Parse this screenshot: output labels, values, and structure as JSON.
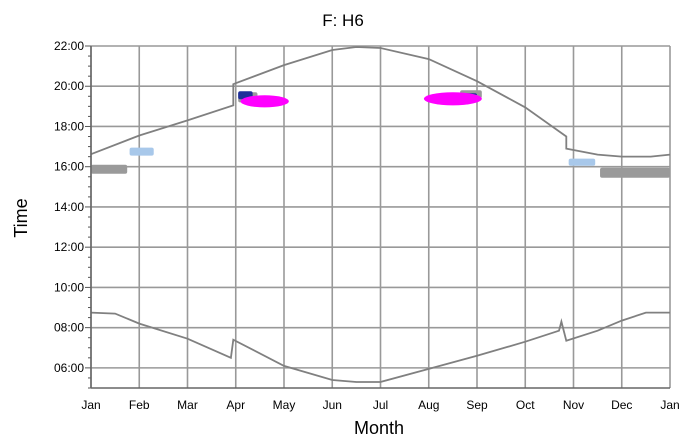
{
  "chart_data": {
    "type": "scatter",
    "title": "F: H6",
    "xlabel": "Month",
    "ylabel": "Time",
    "x_ticks": [
      "Jan",
      "Feb",
      "Mar",
      "Apr",
      "May",
      "Jun",
      "Jul",
      "Aug",
      "Sep",
      "Oct",
      "Nov",
      "Dec",
      "Jan"
    ],
    "y_ticks": [
      "06:00",
      "08:00",
      "10:00",
      "12:00",
      "14:00",
      "16:00",
      "18:00",
      "20:00",
      "22:00"
    ],
    "xlim": [
      0,
      12
    ],
    "ylim": [
      5,
      22
    ],
    "grid": true,
    "colors": {
      "grid": "#999999",
      "sun_line": "#808080",
      "gray": "#9a9a9a",
      "lightblue": "#a8c8ea",
      "darkblue": "#1f2f9a",
      "magenta": "#ff00ff"
    },
    "series": [
      {
        "name": "sunset",
        "kind": "line",
        "points": [
          [
            0,
            16.62
          ],
          [
            1,
            17.55
          ],
          [
            2,
            18.3
          ],
          [
            2.95,
            19.05
          ],
          [
            2.95,
            20.1
          ],
          [
            3,
            20.15
          ],
          [
            4,
            21.05
          ],
          [
            5,
            21.8
          ],
          [
            5.5,
            21.95
          ],
          [
            6,
            21.9
          ],
          [
            7,
            21.35
          ],
          [
            8,
            20.25
          ],
          [
            9,
            18.95
          ],
          [
            9.85,
            17.5
          ],
          [
            9.85,
            16.9
          ],
          [
            10.5,
            16.6
          ],
          [
            11,
            16.5
          ],
          [
            11.6,
            16.5
          ],
          [
            12,
            16.6
          ]
        ]
      },
      {
        "name": "sunrise",
        "kind": "line",
        "points": [
          [
            0,
            8.75
          ],
          [
            0.5,
            8.7
          ],
          [
            1,
            8.2
          ],
          [
            2,
            7.45
          ],
          [
            2.9,
            6.5
          ],
          [
            2.95,
            7.4
          ],
          [
            4,
            6.1
          ],
          [
            5,
            5.4
          ],
          [
            5.5,
            5.3
          ],
          [
            6,
            5.3
          ],
          [
            7,
            5.95
          ],
          [
            8,
            6.6
          ],
          [
            9,
            7.3
          ],
          [
            9.7,
            7.85
          ],
          [
            9.75,
            8.3
          ],
          [
            9.85,
            7.35
          ],
          [
            10.5,
            7.85
          ],
          [
            11,
            8.35
          ],
          [
            11.5,
            8.75
          ],
          [
            12,
            8.75
          ]
        ]
      },
      {
        "name": "gray",
        "kind": "patch",
        "blobs": [
          {
            "x0": 0.0,
            "x1": 0.75,
            "y0": 15.65,
            "y1": 16.1
          },
          {
            "x0": 3.05,
            "x1": 3.45,
            "y0": 19.2,
            "y1": 19.7
          },
          {
            "x0": 7.65,
            "x1": 8.1,
            "y0": 19.4,
            "y1": 19.8
          },
          {
            "x0": 10.55,
            "x1": 12.0,
            "y0": 15.45,
            "y1": 15.95
          }
        ]
      },
      {
        "name": "lightblue",
        "kind": "patch",
        "blobs": [
          {
            "x0": 0.8,
            "x1": 1.3,
            "y0": 16.55,
            "y1": 16.95
          },
          {
            "x0": 9.9,
            "x1": 10.45,
            "y0": 16.05,
            "y1": 16.4
          }
        ]
      },
      {
        "name": "darkblue",
        "kind": "patch",
        "blobs": [
          {
            "x0": 3.05,
            "x1": 3.35,
            "y0": 19.35,
            "y1": 19.75
          },
          {
            "x0": 7.6,
            "x1": 8.0,
            "y0": 19.25,
            "y1": 19.65
          }
        ]
      },
      {
        "name": "magenta",
        "kind": "ellipse",
        "blobs": [
          {
            "x0": 3.1,
            "x1": 4.1,
            "y0": 18.95,
            "y1": 19.55
          },
          {
            "x0": 6.9,
            "x1": 8.1,
            "y0": 19.05,
            "y1": 19.7
          }
        ]
      }
    ]
  }
}
